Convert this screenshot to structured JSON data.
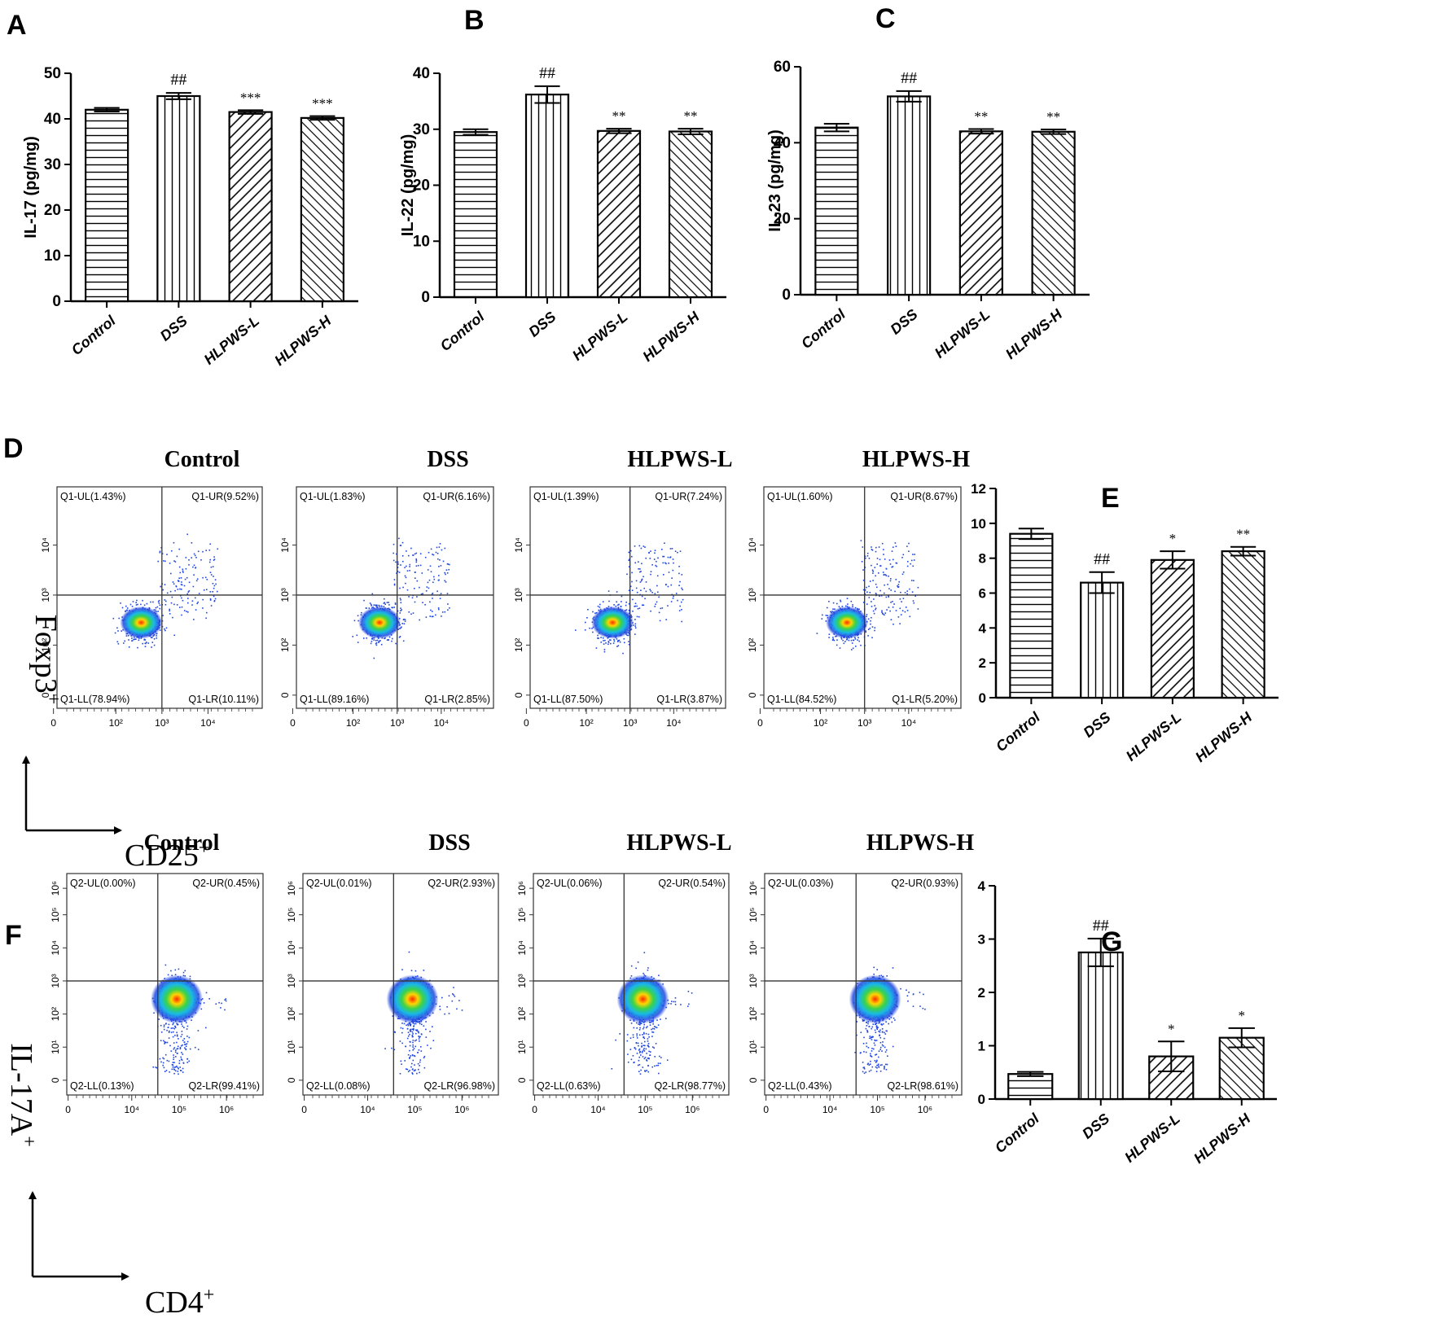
{
  "figure": {
    "panels": {
      "A": {
        "letter": "A",
        "ylabel": "IL-17 (pg/mg)"
      },
      "B": {
        "letter": "B",
        "ylabel": "IL-22 (pg/mg)"
      },
      "C": {
        "letter": "C",
        "ylabel": "IL-23 (pg/mg)"
      },
      "D": {
        "letter": "D",
        "y_axis_marker": "Foxp3",
        "x_axis_marker": "CD25",
        "marker_sup": "+"
      },
      "E": {
        "letter": "E"
      },
      "F": {
        "letter": "F",
        "y_axis_marker": "IL-17A",
        "x_axis_marker": "CD4",
        "marker_sup": "+"
      },
      "G": {
        "letter": "G"
      }
    },
    "group_names": [
      "Control",
      "DSS",
      "HLPWS-L",
      "HLPWS-H"
    ],
    "flow_D": [
      {
        "group": "Control",
        "quadrants": {
          "UL": "Q1-UL(1.43%)",
          "UR": "Q1-UR(9.52%)",
          "LL": "Q1-LL(78.94%)",
          "LR": "Q1-LR(10.11%)"
        }
      },
      {
        "group": "DSS",
        "quadrants": {
          "UL": "Q1-UL(1.83%)",
          "UR": "Q1-UR(6.16%)",
          "LL": "Q1-LL(89.16%)",
          "LR": "Q1-LR(2.85%)"
        }
      },
      {
        "group": "HLPWS-L",
        "quadrants": {
          "UL": "Q1-UL(1.39%)",
          "UR": "Q1-UR(7.24%)",
          "LL": "Q1-LL(87.50%)",
          "LR": "Q1-LR(3.87%)"
        }
      },
      {
        "group": "HLPWS-H",
        "quadrants": {
          "UL": "Q1-UL(1.60%)",
          "UR": "Q1-UR(8.67%)",
          "LL": "Q1-LL(84.52%)",
          "LR": "Q1-LR(5.20%)"
        }
      }
    ],
    "flow_F": [
      {
        "group": "Control",
        "quadrants": {
          "UL": "Q2-UL(0.00%)",
          "UR": "Q2-UR(0.45%)",
          "LL": "Q2-LL(0.13%)",
          "LR": "Q2-LR(99.41%)"
        }
      },
      {
        "group": "DSS",
        "quadrants": {
          "UL": "Q2-UL(0.01%)",
          "UR": "Q2-UR(2.93%)",
          "LL": "Q2-LL(0.08%)",
          "LR": "Q2-LR(96.98%)"
        }
      },
      {
        "group": "HLPWS-L",
        "quadrants": {
          "UL": "Q2-UL(0.06%)",
          "UR": "Q2-UR(0.54%)",
          "LL": "Q2-LL(0.63%)",
          "LR": "Q2-LR(98.77%)"
        }
      },
      {
        "group": "HLPWS-H",
        "quadrants": {
          "UL": "Q2-UL(0.03%)",
          "UR": "Q2-UR(0.93%)",
          "LL": "Q2-LL(0.43%)",
          "LR": "Q2-LR(98.61%)"
        }
      }
    ],
    "flow_axis_ticks": {
      "D_y": [
        "0",
        "10²",
        "10³",
        "10⁴"
      ],
      "D_x": [
        "0",
        "10²",
        "10³",
        "10⁴"
      ],
      "F_y": [
        "0",
        "10¹",
        "10²",
        "10³",
        "10⁴",
        "10⁵",
        "10⁶"
      ],
      "F_x": [
        "0",
        "10⁴",
        "10⁵",
        "10⁶"
      ]
    },
    "flow_gates": {
      "D": {
        "x_log": 3.0,
        "y_log": 3.0
      },
      "F": {
        "x_log": 4.55,
        "y_log": 3.6
      }
    }
  },
  "chart_data": [
    {
      "id": "A",
      "type": "bar",
      "ylabel": "IL-17 (pg/mg)",
      "categories": [
        "Control",
        "DSS",
        "HLPWS-L",
        "HLPWS-H"
      ],
      "values": [
        42.0,
        45.0,
        41.5,
        40.2
      ],
      "errors": [
        0.4,
        0.7,
        0.4,
        0.4
      ],
      "annotations": [
        "",
        "##",
        "***",
        "***"
      ],
      "ylim": [
        0,
        50
      ],
      "yticks": [
        0,
        10,
        20,
        30,
        40,
        50
      ]
    },
    {
      "id": "B",
      "type": "bar",
      "ylabel": "IL-22 (pg/mg)",
      "categories": [
        "Control",
        "DSS",
        "HLPWS-L",
        "HLPWS-H"
      ],
      "values": [
        29.5,
        36.2,
        29.7,
        29.6
      ],
      "errors": [
        0.5,
        1.5,
        0.4,
        0.5
      ],
      "annotations": [
        "",
        "##",
        "**",
        "**"
      ],
      "ylim": [
        0,
        40
      ],
      "yticks": [
        0,
        10,
        20,
        30,
        40
      ]
    },
    {
      "id": "C",
      "type": "bar",
      "ylabel": "IL-23 (pg/mg)",
      "categories": [
        "Control",
        "DSS",
        "HLPWS-L",
        "HLPWS-H"
      ],
      "values": [
        44.0,
        52.2,
        43.0,
        42.9
      ],
      "errors": [
        1.0,
        1.4,
        0.6,
        0.6
      ],
      "annotations": [
        "",
        "##",
        "**",
        "**"
      ],
      "ylim": [
        0,
        60
      ],
      "yticks": [
        0,
        20,
        40,
        60
      ]
    },
    {
      "id": "E",
      "type": "bar",
      "ylabel": "",
      "categories": [
        "Control",
        "DSS",
        "HLPWS-L",
        "HLPWS-H"
      ],
      "values": [
        9.4,
        6.6,
        7.9,
        8.4
      ],
      "errors": [
        0.3,
        0.6,
        0.5,
        0.25
      ],
      "annotations": [
        "",
        "##",
        "*",
        "**"
      ],
      "ylim": [
        0,
        12
      ],
      "yticks": [
        0,
        2,
        4,
        6,
        8,
        10,
        12
      ]
    },
    {
      "id": "G",
      "type": "bar",
      "ylabel": "",
      "categories": [
        "Control",
        "DSS",
        "HLPWS-L",
        "HLPWS-H"
      ],
      "values": [
        0.47,
        2.75,
        0.8,
        1.15
      ],
      "errors": [
        0.04,
        0.26,
        0.28,
        0.18
      ],
      "annotations": [
        "",
        "##",
        "*",
        "*"
      ],
      "ylim": [
        0,
        4
      ],
      "yticks": [
        0,
        1,
        2,
        3,
        4
      ]
    }
  ]
}
